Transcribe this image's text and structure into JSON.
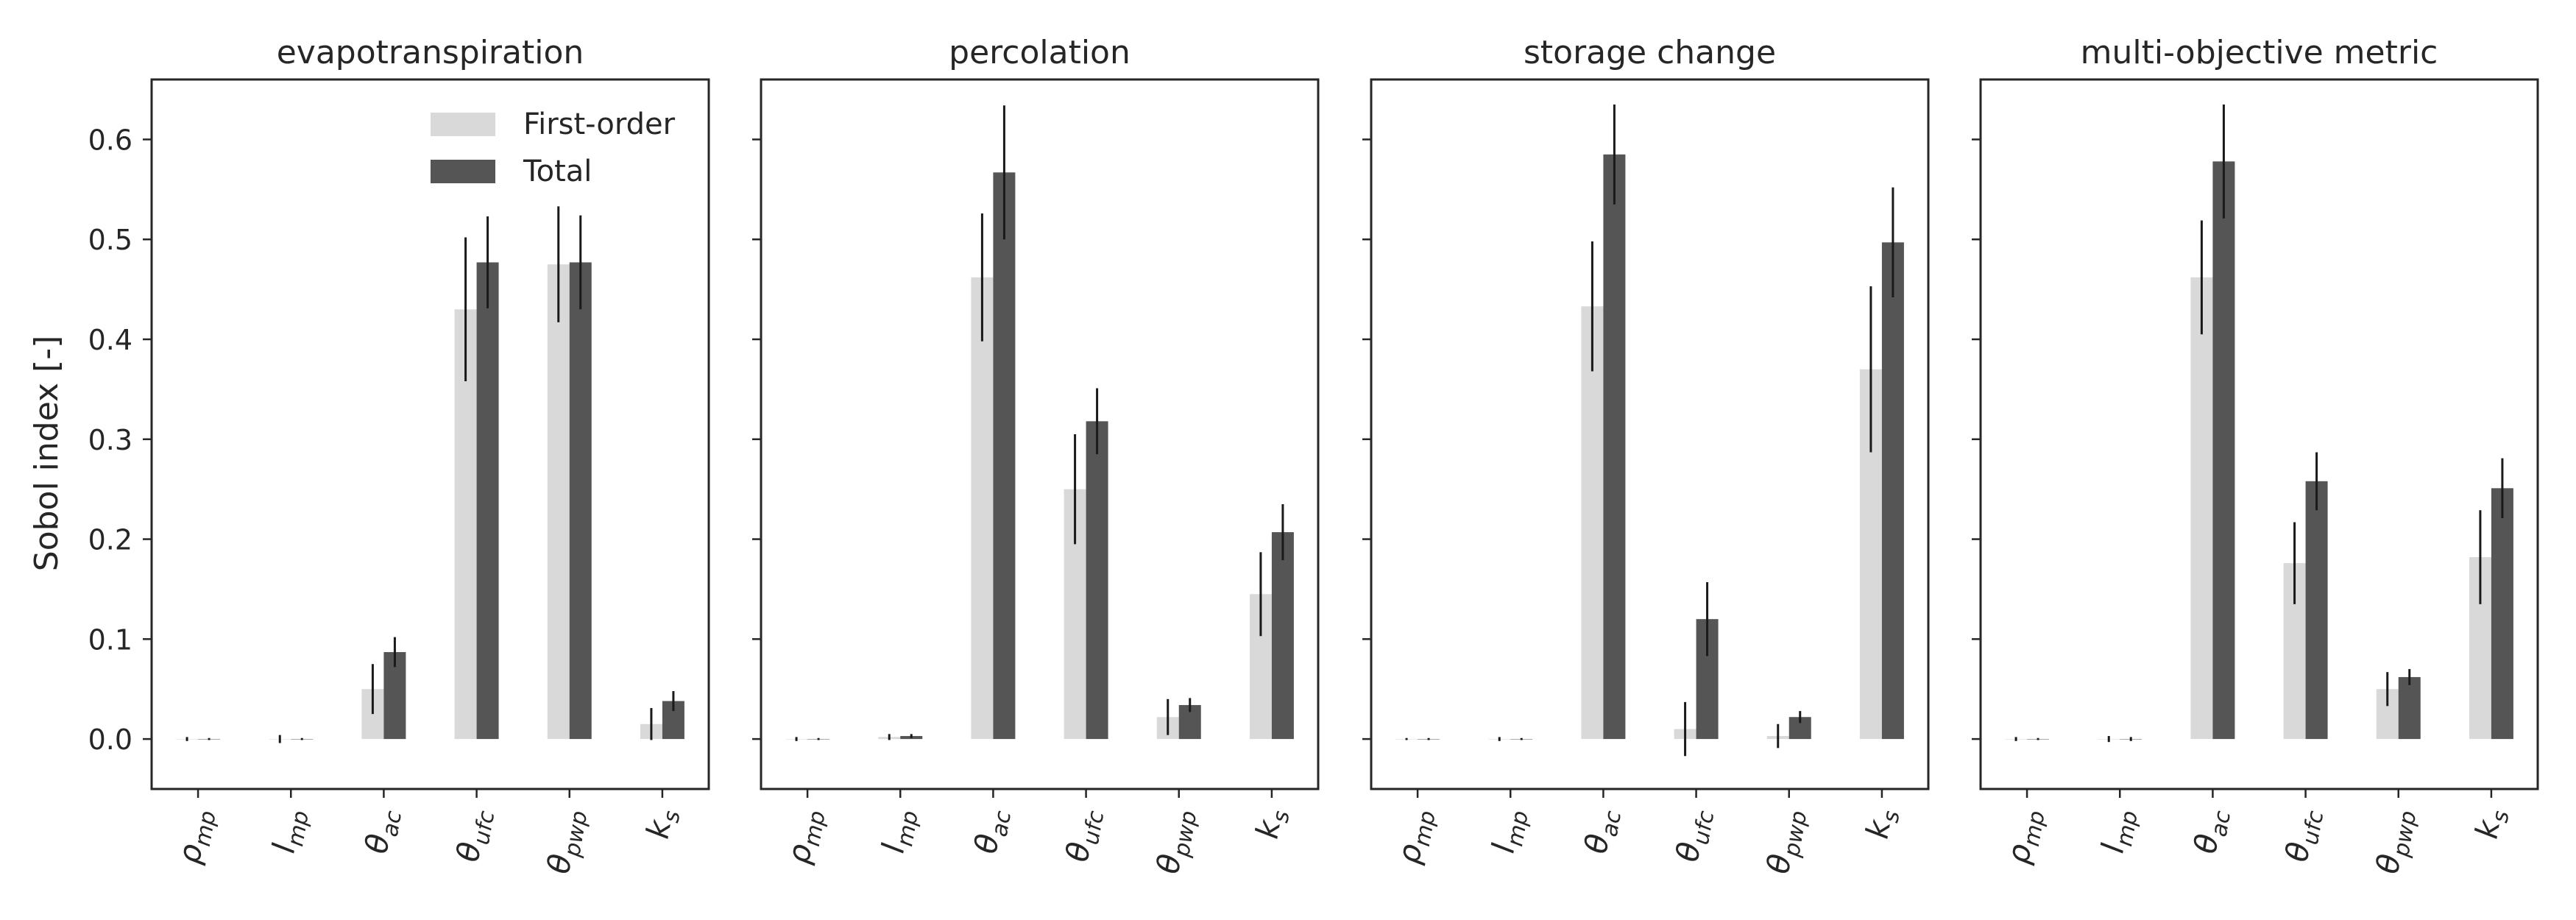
{
  "figure": {
    "ylabel": "Sobol index [-]",
    "legend": {
      "placement": "top-right",
      "entries": [
        "First-order",
        "Total"
      ]
    },
    "colors": {
      "first_order": "#d9d9d9",
      "total": "#555555",
      "error_bar": "#1a1a1a",
      "axis": "#262626"
    }
  },
  "chart_data": [
    {
      "type": "bar",
      "title": "evapotranspiration",
      "ylabel": "Sobol index [-]",
      "ylim": [
        -0.05,
        0.66
      ],
      "yticks": [
        0.0,
        0.1,
        0.2,
        0.3,
        0.4,
        0.5,
        0.6
      ],
      "ytick_labels": [
        "0.0",
        "0.1",
        "0.2",
        "0.3",
        "0.4",
        "0.5",
        "0.6"
      ],
      "grid": false,
      "legend": "top-right",
      "categories": [
        {
          "base": "ρ",
          "sub": "mp"
        },
        {
          "base": "l",
          "sub": "mp"
        },
        {
          "base": "θ",
          "sub": "ac"
        },
        {
          "base": "θ",
          "sub": "ufc"
        },
        {
          "base": "θ",
          "sub": "pwp"
        },
        {
          "base": "k",
          "sub": "s"
        }
      ],
      "series": [
        {
          "name": "First-order",
          "values": [
            0.0,
            0.0,
            0.05,
            0.43,
            0.475,
            0.015
          ],
          "err": [
            0.002,
            0.004,
            0.025,
            0.072,
            0.058,
            0.016
          ]
        },
        {
          "name": "Total",
          "values": [
            0.0,
            0.0,
            0.087,
            0.477,
            0.477,
            0.038
          ],
          "err": [
            0.001,
            0.001,
            0.015,
            0.046,
            0.047,
            0.01
          ]
        }
      ]
    },
    {
      "type": "bar",
      "title": "percolation",
      "ylim": [
        -0.05,
        0.66
      ],
      "yticks": [
        0.0,
        0.1,
        0.2,
        0.3,
        0.4,
        0.5,
        0.6
      ],
      "ytick_labels": [],
      "grid": false,
      "categories": [
        {
          "base": "ρ",
          "sub": "mp"
        },
        {
          "base": "l",
          "sub": "mp"
        },
        {
          "base": "θ",
          "sub": "ac"
        },
        {
          "base": "θ",
          "sub": "ufc"
        },
        {
          "base": "θ",
          "sub": "pwp"
        },
        {
          "base": "k",
          "sub": "s"
        }
      ],
      "series": [
        {
          "name": "First-order",
          "values": [
            0.0,
            0.002,
            0.462,
            0.25,
            0.022,
            0.145
          ],
          "err": [
            0.002,
            0.003,
            0.064,
            0.055,
            0.018,
            0.042
          ]
        },
        {
          "name": "Total",
          "values": [
            0.0,
            0.003,
            0.567,
            0.318,
            0.034,
            0.207
          ],
          "err": [
            0.001,
            0.002,
            0.067,
            0.033,
            0.007,
            0.028
          ]
        }
      ]
    },
    {
      "type": "bar",
      "title": "storage change",
      "ylim": [
        -0.05,
        0.66
      ],
      "yticks": [
        0.0,
        0.1,
        0.2,
        0.3,
        0.4,
        0.5,
        0.6
      ],
      "ytick_labels": [],
      "grid": false,
      "categories": [
        {
          "base": "ρ",
          "sub": "mp"
        },
        {
          "base": "l",
          "sub": "mp"
        },
        {
          "base": "θ",
          "sub": "ac"
        },
        {
          "base": "θ",
          "sub": "ufc"
        },
        {
          "base": "θ",
          "sub": "pwp"
        },
        {
          "base": "k",
          "sub": "s"
        }
      ],
      "series": [
        {
          "name": "First-order",
          "values": [
            0.0,
            0.0,
            0.433,
            0.01,
            0.003,
            0.37
          ],
          "err": [
            0.001,
            0.002,
            0.065,
            0.027,
            0.012,
            0.083
          ]
        },
        {
          "name": "Total",
          "values": [
            0.0,
            0.0,
            0.585,
            0.12,
            0.022,
            0.497
          ],
          "err": [
            0.001,
            0.001,
            0.05,
            0.037,
            0.006,
            0.055
          ]
        }
      ]
    },
    {
      "type": "bar",
      "title": "multi-objective metric",
      "ylim": [
        -0.05,
        0.66
      ],
      "yticks": [
        0.0,
        0.1,
        0.2,
        0.3,
        0.4,
        0.5,
        0.6
      ],
      "ytick_labels": [],
      "grid": false,
      "categories": [
        {
          "base": "ρ",
          "sub": "mp"
        },
        {
          "base": "l",
          "sub": "mp"
        },
        {
          "base": "θ",
          "sub": "ac"
        },
        {
          "base": "θ",
          "sub": "ufc"
        },
        {
          "base": "θ",
          "sub": "pwp"
        },
        {
          "base": "k",
          "sub": "s"
        }
      ],
      "series": [
        {
          "name": "First-order",
          "values": [
            0.0,
            0.0,
            0.462,
            0.176,
            0.05,
            0.182
          ],
          "err": [
            0.002,
            0.003,
            0.057,
            0.041,
            0.017,
            0.047
          ]
        },
        {
          "name": "Total",
          "values": [
            0.0,
            0.0,
            0.578,
            0.258,
            0.062,
            0.251
          ],
          "err": [
            0.001,
            0.002,
            0.057,
            0.029,
            0.008,
            0.03
          ]
        }
      ]
    }
  ]
}
